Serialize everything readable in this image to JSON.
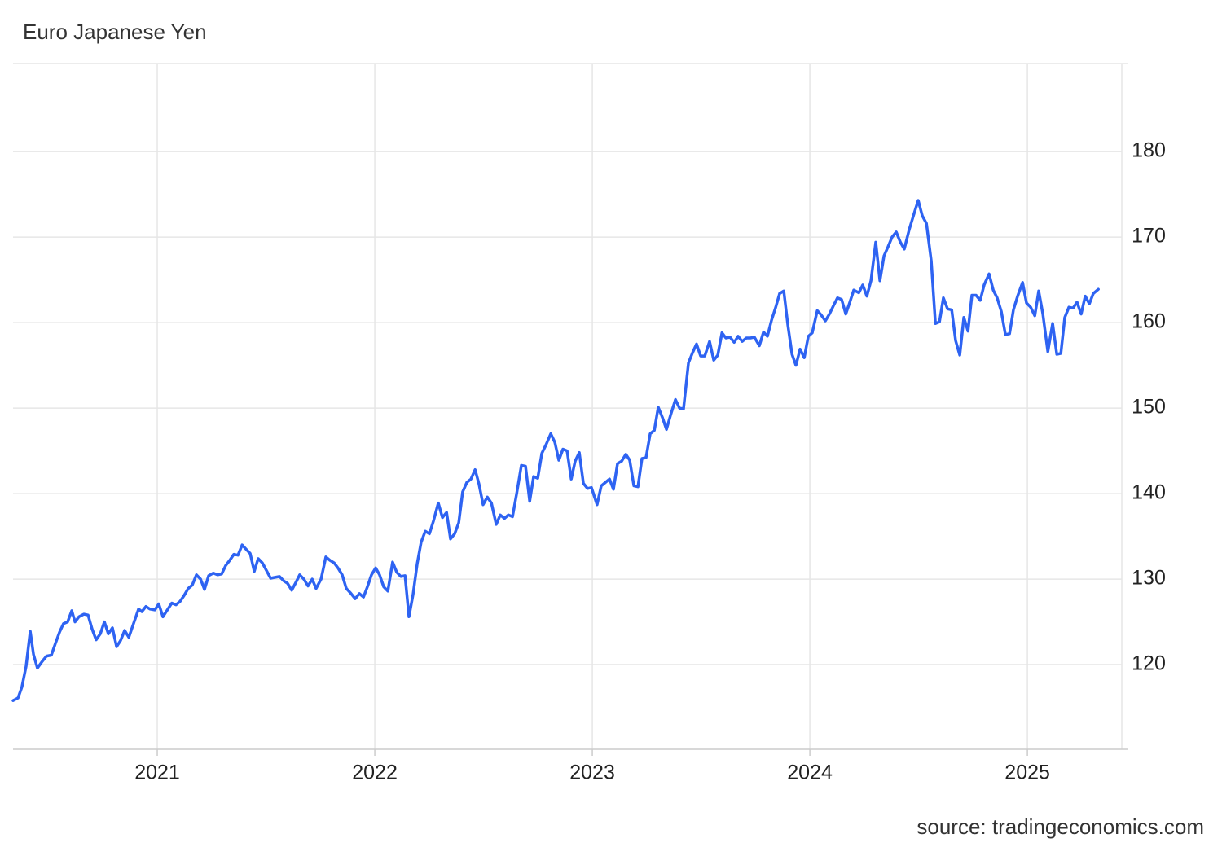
{
  "chart_data": {
    "type": "line",
    "title": "Euro Japanese Yen",
    "source": "source: tradingeconomics.com",
    "color": "#2e63f2",
    "grid": true,
    "xlim": [
      2020.337,
      2025.434
    ],
    "ylim": [
      110.1,
      190.3
    ],
    "xticks": [
      2021,
      2022,
      2023,
      2024,
      2025
    ],
    "yticks": [
      120,
      130,
      140,
      150,
      160,
      170,
      180
    ],
    "x": [
      2020.337,
      2020.36,
      2020.378,
      2020.397,
      2020.416,
      2020.431,
      2020.449,
      2020.472,
      2020.491,
      2020.513,
      2020.532,
      2020.551,
      2020.569,
      2020.588,
      2020.607,
      2020.622,
      2020.64,
      2020.663,
      2020.682,
      2020.7,
      2020.719,
      2020.738,
      2020.757,
      2020.775,
      2020.794,
      2020.813,
      2020.831,
      2020.85,
      2020.869,
      2020.891,
      2020.914,
      2020.929,
      2020.948,
      2020.966,
      2020.989,
      2021.007,
      2021.026,
      2021.049,
      2021.067,
      2021.086,
      2021.105,
      2021.124,
      2021.142,
      2021.161,
      2021.18,
      2021.199,
      2021.217,
      2021.236,
      2021.258,
      2021.277,
      2021.296,
      2021.315,
      2021.333,
      2021.352,
      2021.371,
      2021.39,
      2021.408,
      2021.427,
      2021.446,
      2021.464,
      2021.483,
      2021.502,
      2021.521,
      2021.539,
      2021.562,
      2021.581,
      2021.599,
      2021.618,
      2021.637,
      2021.655,
      2021.674,
      2021.693,
      2021.712,
      2021.73,
      2021.753,
      2021.775,
      2021.794,
      2021.813,
      2021.831,
      2021.85,
      2021.869,
      2021.888,
      2021.91,
      2021.929,
      2021.948,
      2021.966,
      2021.985,
      2022.004,
      2022.022,
      2022.041,
      2022.06,
      2022.082,
      2022.101,
      2022.12,
      2022.139,
      2022.157,
      2022.176,
      2022.195,
      2022.213,
      2022.232,
      2022.251,
      2022.27,
      2022.292,
      2022.311,
      2022.33,
      2022.348,
      2022.367,
      2022.386,
      2022.404,
      2022.423,
      2022.442,
      2022.461,
      2022.479,
      2022.498,
      2022.517,
      2022.536,
      2022.558,
      2022.577,
      2022.596,
      2022.614,
      2022.633,
      2022.652,
      2022.674,
      2022.693,
      2022.712,
      2022.73,
      2022.749,
      2022.768,
      2022.787,
      2022.809,
      2022.828,
      2022.846,
      2022.865,
      2022.884,
      2022.903,
      2022.921,
      2022.94,
      2022.959,
      2022.978,
      2022.996,
      2023.022,
      2023.041,
      2023.06,
      2023.079,
      2023.097,
      2023.116,
      2023.135,
      2023.154,
      2023.172,
      2023.191,
      2023.21,
      2023.228,
      2023.247,
      2023.266,
      2023.285,
      2023.303,
      2023.322,
      2023.341,
      2023.36,
      2023.382,
      2023.401,
      2023.419,
      2023.442,
      2023.461,
      2023.479,
      2023.498,
      2023.517,
      2023.539,
      2023.558,
      2023.577,
      2023.596,
      2023.614,
      2023.633,
      2023.652,
      2023.67,
      2023.689,
      2023.708,
      2023.727,
      2023.745,
      2023.768,
      2023.787,
      2023.805,
      2023.824,
      2023.843,
      2023.861,
      2023.88,
      2023.899,
      2023.918,
      2023.936,
      2023.955,
      2023.974,
      2023.993,
      2024.011,
      2024.034,
      2024.052,
      2024.071,
      2024.09,
      2024.109,
      2024.127,
      2024.146,
      2024.165,
      2024.184,
      2024.202,
      2024.225,
      2024.243,
      2024.262,
      2024.281,
      2024.303,
      2024.322,
      2024.341,
      2024.36,
      2024.378,
      2024.397,
      2024.416,
      2024.434,
      2024.457,
      2024.476,
      2024.498,
      2024.517,
      2024.536,
      2024.558,
      2024.577,
      2024.596,
      2024.614,
      2024.633,
      2024.652,
      2024.67,
      2024.689,
      2024.708,
      2024.727,
      2024.745,
      2024.764,
      2024.783,
      2024.801,
      2024.824,
      2024.843,
      2024.861,
      2024.88,
      2024.899,
      2024.918,
      2024.936,
      2024.955,
      2024.978,
      2024.996,
      2025.015,
      2025.034,
      2025.052,
      2025.071,
      2025.094,
      2025.116,
      2025.135,
      2025.154,
      2025.172,
      2025.191,
      2025.21,
      2025.228,
      2025.247,
      2025.266,
      2025.285,
      2025.303,
      2025.326
    ],
    "values": [
      115.8,
      116.1,
      117.4,
      119.8,
      123.9,
      121.2,
      119.6,
      120.4,
      121.0,
      121.1,
      122.5,
      123.8,
      124.8,
      125.0,
      126.3,
      125.0,
      125.6,
      125.9,
      125.8,
      124.2,
      122.9,
      123.6,
      125.0,
      123.6,
      124.3,
      122.1,
      122.8,
      124.0,
      123.2,
      124.8,
      126.5,
      126.2,
      126.8,
      126.5,
      126.4,
      127.1,
      125.6,
      126.5,
      127.2,
      127.0,
      127.4,
      128.1,
      128.9,
      129.3,
      130.5,
      130.0,
      128.8,
      130.4,
      130.7,
      130.5,
      130.6,
      131.6,
      132.2,
      132.9,
      132.8,
      134.0,
      133.5,
      133.0,
      130.9,
      132.4,
      131.9,
      131.0,
      130.1,
      130.2,
      130.3,
      129.8,
      129.5,
      128.7,
      129.6,
      130.5,
      130.0,
      129.2,
      130.0,
      128.9,
      130.0,
      132.6,
      132.2,
      131.9,
      131.3,
      130.5,
      128.9,
      128.4,
      127.7,
      128.3,
      127.9,
      129.1,
      130.5,
      131.3,
      130.5,
      129.1,
      128.6,
      132.0,
      130.8,
      130.3,
      130.4,
      125.6,
      128.2,
      131.8,
      134.3,
      135.6,
      135.3,
      136.8,
      138.9,
      137.2,
      137.8,
      134.7,
      135.3,
      136.6,
      140.2,
      141.3,
      141.7,
      142.8,
      141.1,
      138.7,
      139.6,
      138.9,
      136.4,
      137.5,
      137.1,
      137.5,
      137.3,
      140.0,
      143.3,
      143.2,
      139.1,
      142.0,
      141.8,
      144.7,
      145.7,
      147.0,
      146.0,
      143.9,
      145.2,
      145.0,
      141.7,
      143.8,
      144.8,
      141.2,
      140.6,
      140.7,
      138.7,
      140.9,
      141.3,
      141.7,
      140.5,
      143.5,
      143.8,
      144.6,
      143.9,
      140.9,
      140.8,
      144.1,
      144.2,
      147.0,
      147.4,
      150.1,
      148.9,
      147.5,
      149.2,
      151.0,
      150.0,
      149.9,
      155.3,
      156.5,
      157.5,
      156.1,
      156.1,
      157.8,
      155.6,
      156.2,
      158.8,
      158.2,
      158.3,
      157.7,
      158.4,
      157.8,
      158.2,
      158.2,
      158.3,
      157.3,
      158.9,
      158.4,
      160.3,
      161.8,
      163.4,
      163.7,
      159.7,
      156.3,
      155.0,
      156.9,
      155.9,
      158.4,
      158.8,
      161.4,
      160.9,
      160.2,
      161.0,
      162.0,
      162.9,
      162.7,
      161.0,
      162.4,
      163.8,
      163.5,
      164.4,
      163.1,
      164.9,
      169.4,
      164.9,
      167.8,
      168.9,
      170.0,
      170.6,
      169.4,
      168.6,
      170.9,
      172.5,
      174.3,
      172.5,
      171.6,
      167.2,
      159.9,
      160.1,
      162.9,
      161.6,
      161.5,
      157.9,
      156.2,
      160.6,
      159.0,
      163.2,
      163.2,
      162.6,
      164.4,
      165.7,
      163.8,
      162.9,
      161.3,
      158.6,
      158.7,
      161.5,
      163.1,
      164.7,
      162.3,
      161.8,
      160.8,
      163.7,
      161.0,
      156.6,
      159.9,
      156.3,
      156.4,
      160.6,
      161.8,
      161.7,
      162.4,
      161.0,
      163.1,
      162.2,
      163.4,
      163.9
    ]
  }
}
